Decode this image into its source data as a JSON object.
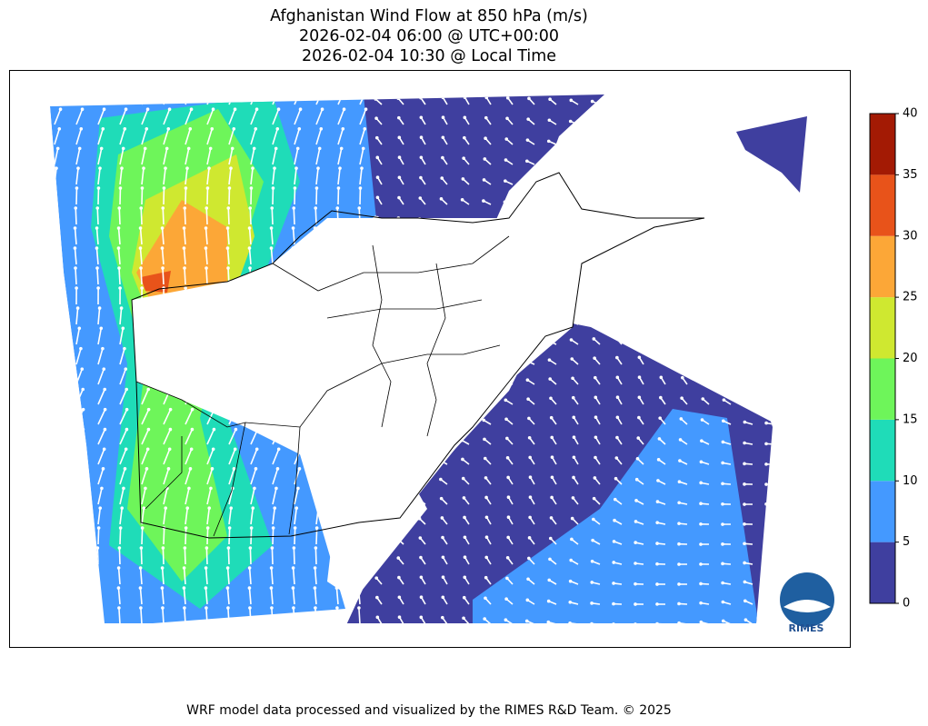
{
  "header": {
    "title_lines": [
      "Afghanistan Wind Flow at 850 hPa (m/s)",
      "2026-02-04 06:00 @ UTC+00:00",
      "2026-02-04 10:30 @ Local Time"
    ]
  },
  "colorbar": {
    "ticks": [
      0,
      5,
      10,
      15,
      20,
      25,
      30,
      35,
      40
    ],
    "colors": [
      "#3f3f9f",
      "#4499ff",
      "#1fdcb8",
      "#6ef55a",
      "#cfe830",
      "#fca737",
      "#e8531a",
      "#a31a04"
    ]
  },
  "logo_text": "RIMES",
  "footer": "WRF model data processed and visualized by the RIMES R&D Team. © 2025"
}
